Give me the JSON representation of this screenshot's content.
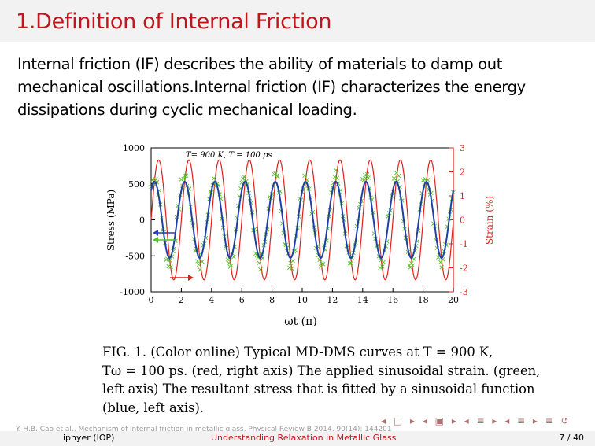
{
  "slide": {
    "title": "1.Definition of Internal Friction",
    "intro": "Internal friction (IF) describes the ability of materials to damp out mechanical oscillations.Internal friction (IF) characterizes the energy dissipations during cyclic mechanical loading."
  },
  "figure": {
    "annotation": "T= 900 K, T = 100 ps",
    "caption_lines": [
      "FIG. 1. (Color online)  Typical MD-DMS curves at T = 900 K,",
      "Tω = 100 ps. (red, right axis) The applied sinusoidal strain. (green,",
      "left axis) The resultant stress that is fitted by a sinusoidal function",
      "(blue, left axis)."
    ]
  },
  "chart_data": {
    "type": "line",
    "xlabel": "ωt (π)",
    "ylabel_left": "Stress (MPa)",
    "ylabel_right": "Strain (%)",
    "xlim": [
      0,
      20
    ],
    "ylim_left": [
      -1000,
      1000
    ],
    "ylim_right": [
      -3,
      3
    ],
    "x_ticks": [
      0,
      2,
      4,
      6,
      8,
      10,
      12,
      14,
      16,
      18,
      20
    ],
    "y_left_ticks": [
      1000,
      500,
      0,
      -500,
      -1000
    ],
    "y_right_ticks": [
      3,
      2,
      1,
      0,
      -1,
      -2,
      -3
    ],
    "series": [
      {
        "axis": "right",
        "color": "#e0201b",
        "function": "sin",
        "amplitude": 2.5,
        "period_pi": 2
      },
      {
        "axis": "left",
        "color": "#55c02a",
        "function": "sin-lagged",
        "amplitude": 600,
        "period_pi": 2
      },
      {
        "axis": "left",
        "color": "#1f3fa8",
        "function": "sin-lagged",
        "amplitude": 530,
        "period_pi": 2
      }
    ]
  },
  "nav": {
    "symbols": "◂ □ ▸ ◂ ▣ ▸ ◂ ≡ ▸ ◂ ≡ ▸ ≡ ↺"
  },
  "citation": "Y. H.B. Cao et al., Mechanism of internal friction in metallic glass, Physical Review B 2014, 90(14): 144201",
  "footer": {
    "author": "iphyer (IOP)",
    "talk_title": "Understanding Relaxation in Metallic Glass",
    "page": "7 / 40"
  }
}
